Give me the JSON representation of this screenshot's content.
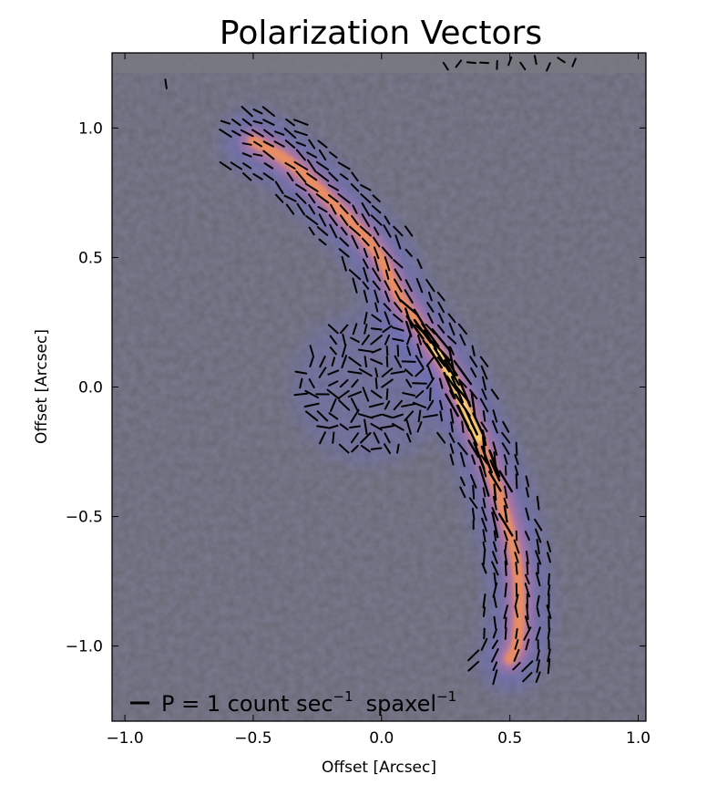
{
  "chart_data": {
    "type": "scatter",
    "title": "Polarization Vectors",
    "xlabel": "Offset [Arcsec]",
    "ylabel": "Offset [Arcsec]",
    "xlim": [
      -1.05,
      1.03
    ],
    "ylim": [
      -1.29,
      1.29
    ],
    "xticks": [
      -1.0,
      -0.5,
      0.0,
      0.5,
      1.0
    ],
    "yticks": [
      -1.0,
      -0.5,
      0.0,
      0.5,
      1.0
    ],
    "xtick_labels": [
      "−1.0",
      "−0.5",
      "0.0",
      "0.5",
      "1.0"
    ],
    "ytick_labels": [
      "−1.0",
      "−0.5",
      "0.0",
      "0.5",
      "1.0"
    ],
    "grid": false,
    "background_color": "#6b6b78",
    "arc_colors": {
      "halo": "#7070c8",
      "mid": "#c878a8",
      "core": "#f0905a",
      "peak": "#ffe070"
    },
    "arc_path": [
      [
        -0.5,
        0.95
      ],
      [
        -0.4,
        0.9
      ],
      [
        -0.3,
        0.82
      ],
      [
        -0.2,
        0.72
      ],
      [
        -0.1,
        0.62
      ],
      [
        0.0,
        0.5
      ],
      [
        0.05,
        0.38
      ],
      [
        0.12,
        0.27
      ],
      [
        0.2,
        0.16
      ],
      [
        0.27,
        0.05
      ],
      [
        0.32,
        -0.07
      ],
      [
        0.38,
        -0.2
      ],
      [
        0.44,
        -0.36
      ],
      [
        0.49,
        -0.52
      ],
      [
        0.53,
        -0.68
      ],
      [
        0.54,
        -0.85
      ],
      [
        0.53,
        -1.0
      ],
      [
        0.5,
        -1.05
      ]
    ],
    "vector_length_scale_arcsec_per_count": 0.06,
    "vector_groups": [
      {
        "region": "arc",
        "x_range": [
          -0.62,
          0.62
        ],
        "y_range": [
          -1.1,
          1.12
        ]
      },
      {
        "region": "disk",
        "center": [
          -0.05,
          0.0
        ],
        "radius": 0.27
      },
      {
        "region": "top-edge",
        "x_range": [
          0.25,
          0.8
        ],
        "y_range": [
          1.2,
          1.28
        ]
      }
    ],
    "legend": {
      "placement": "bottom-left",
      "prefix": "P = 1 count  sec",
      "sup1": "−1",
      "mid": "spaxel",
      "sup2": "−1"
    }
  }
}
